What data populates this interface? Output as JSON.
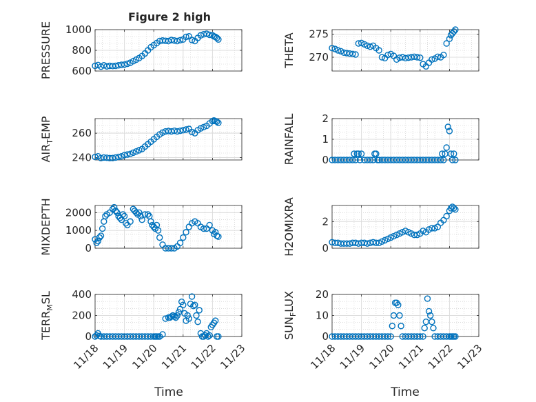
{
  "figure_title": "Figure 2 high",
  "xlabel": "Time",
  "xtick_labels": [
    "11/18",
    "11/19",
    "11/20",
    "11/21",
    "11/22",
    "11/23"
  ],
  "colors": {
    "marker": "#0072BD",
    "axis": "#262626",
    "grid": "#c8c8c8",
    "background": "#ffffff"
  },
  "chart_data": [
    {
      "type": "scatter",
      "ylabel": "PRESSURE",
      "xlim": [
        0,
        5
      ],
      "ylim": [
        600,
        1000
      ],
      "yticks": [
        600,
        800,
        1000
      ],
      "grid": true,
      "title": "Figure 2 high",
      "series": [
        {
          "x": [
            0.0,
            0.1,
            0.2,
            0.3,
            0.4,
            0.5,
            0.6,
            0.7,
            0.8,
            0.9,
            1.0,
            1.1,
            1.2,
            1.3,
            1.4,
            1.5,
            1.6,
            1.7,
            1.8,
            1.9,
            2.0,
            2.1,
            2.2,
            2.3,
            2.4,
            2.5,
            2.6,
            2.7,
            2.8,
            2.9,
            3.0,
            3.1,
            3.2,
            3.3,
            3.4,
            3.5,
            3.6,
            3.7,
            3.8,
            3.9,
            4.0,
            4.05,
            4.1,
            4.15,
            4.2
          ],
          "y": [
            650,
            658,
            642,
            655,
            645,
            650,
            648,
            650,
            655,
            660,
            662,
            670,
            680,
            695,
            710,
            725,
            745,
            770,
            800,
            830,
            850,
            870,
            890,
            895,
            892,
            890,
            900,
            895,
            890,
            898,
            905,
            930,
            935,
            900,
            890,
            920,
            945,
            955,
            960,
            950,
            945,
            935,
            930,
            920,
            905
          ]
        }
      ]
    },
    {
      "type": "scatter",
      "ylabel": "THETA",
      "xlim": [
        0,
        5
      ],
      "ylim": [
        267,
        276
      ],
      "yticks": [
        270,
        275
      ],
      "grid": true,
      "series": [
        {
          "x": [
            0.0,
            0.1,
            0.2,
            0.3,
            0.4,
            0.5,
            0.6,
            0.7,
            0.8,
            0.9,
            1.0,
            1.1,
            1.2,
            1.3,
            1.4,
            1.5,
            1.6,
            1.7,
            1.8,
            1.9,
            2.0,
            2.1,
            2.2,
            2.3,
            2.4,
            2.5,
            2.6,
            2.7,
            2.8,
            2.9,
            3.0,
            3.1,
            3.2,
            3.3,
            3.4,
            3.5,
            3.6,
            3.7,
            3.8,
            3.9,
            4.0,
            4.05,
            4.1,
            4.15,
            4.2
          ],
          "y": [
            272,
            271.8,
            271.5,
            271.3,
            271,
            270.9,
            270.8,
            270.7,
            270.6,
            273,
            273.1,
            272.8,
            272.5,
            272.3,
            272.5,
            272,
            271.5,
            270,
            269.8,
            270.5,
            270.7,
            270.3,
            269.5,
            269.9,
            270,
            269.8,
            269.9,
            270,
            270.1,
            270,
            269.9,
            268.5,
            268,
            268.8,
            269.5,
            269.7,
            270.1,
            270,
            270.5,
            273,
            274,
            274.8,
            275.2,
            275.6,
            276
          ]
        }
      ]
    },
    {
      "type": "scatter",
      "ylabel": "AIR_TEMP",
      "xlim": [
        0,
        5
      ],
      "ylim": [
        238,
        272
      ],
      "yticks": [
        240,
        260
      ],
      "grid": true,
      "series": [
        {
          "x": [
            0.0,
            0.1,
            0.2,
            0.3,
            0.4,
            0.5,
            0.6,
            0.7,
            0.8,
            0.9,
            1.0,
            1.1,
            1.2,
            1.3,
            1.4,
            1.5,
            1.6,
            1.7,
            1.8,
            1.9,
            2.0,
            2.1,
            2.2,
            2.3,
            2.4,
            2.5,
            2.6,
            2.7,
            2.8,
            2.9,
            3.0,
            3.1,
            3.2,
            3.3,
            3.4,
            3.5,
            3.6,
            3.7,
            3.8,
            3.9,
            4.0,
            4.05,
            4.1,
            4.15,
            4.2
          ],
          "y": [
            240.5,
            241,
            239.5,
            240,
            239.8,
            239.5,
            239.6,
            240,
            240.5,
            241,
            242,
            242.5,
            243,
            244,
            245,
            246,
            247,
            249,
            251,
            253,
            255,
            257,
            259,
            260.5,
            261.5,
            261.8,
            261.5,
            262,
            261.5,
            262,
            262.5,
            263,
            263.5,
            261,
            260,
            262.5,
            264,
            265,
            266,
            268,
            270,
            270.5,
            270,
            269.5,
            268.5
          ]
        }
      ]
    },
    {
      "type": "scatter",
      "ylabel": "RAINFALL",
      "xlim": [
        0,
        5
      ],
      "ylim": [
        0,
        2
      ],
      "yticks": [
        0,
        1,
        2
      ],
      "grid": true,
      "series": [
        {
          "x": [
            0.0,
            0.1,
            0.2,
            0.3,
            0.4,
            0.5,
            0.6,
            0.7,
            0.75,
            0.8,
            0.85,
            0.9,
            0.95,
            1.0,
            1.1,
            1.2,
            1.3,
            1.4,
            1.45,
            1.5,
            1.55,
            1.6,
            1.7,
            1.8,
            1.9,
            2.0,
            2.1,
            2.2,
            2.3,
            2.4,
            2.5,
            2.6,
            2.7,
            2.8,
            2.9,
            3.0,
            3.1,
            3.2,
            3.3,
            3.4,
            3.5,
            3.6,
            3.7,
            3.75,
            3.8,
            3.85,
            3.9,
            3.95,
            4.0,
            4.05,
            4.1,
            4.15,
            4.2
          ],
          "y": [
            0,
            0,
            0,
            0,
            0,
            0,
            0,
            0,
            0.3,
            0,
            0.3,
            0.3,
            0,
            0.3,
            0,
            0,
            0,
            0,
            0.3,
            0.3,
            0,
            0,
            0,
            0,
            0,
            0,
            0,
            0,
            0,
            0,
            0,
            0,
            0,
            0,
            0,
            0,
            0,
            0,
            0,
            0,
            0,
            0,
            0,
            0.3,
            0,
            0.3,
            0.6,
            1.6,
            1.4,
            0.3,
            0,
            0.3,
            0
          ]
        }
      ]
    },
    {
      "type": "scatter",
      "ylabel": "MIXDEPTH",
      "xlim": [
        0,
        5
      ],
      "ylim": [
        0,
        2400
      ],
      "yticks": [
        0,
        1000,
        2000
      ],
      "grid": true,
      "series": [
        {
          "x": [
            0.0,
            0.05,
            0.1,
            0.15,
            0.2,
            0.25,
            0.3,
            0.35,
            0.4,
            0.5,
            0.6,
            0.65,
            0.7,
            0.75,
            0.8,
            0.85,
            0.9,
            0.95,
            1.0,
            1.05,
            1.1,
            1.2,
            1.3,
            1.35,
            1.4,
            1.45,
            1.5,
            1.55,
            1.6,
            1.7,
            1.8,
            1.85,
            1.9,
            1.95,
            2.0,
            2.05,
            2.1,
            2.15,
            2.2,
            2.3,
            2.4,
            2.5,
            2.6,
            2.7,
            2.8,
            2.9,
            3.0,
            3.1,
            3.2,
            3.3,
            3.4,
            3.5,
            3.6,
            3.7,
            3.8,
            3.9,
            4.0,
            4.05,
            4.1,
            4.15,
            4.2
          ],
          "y": [
            500,
            300,
            400,
            600,
            700,
            1100,
            1500,
            1800,
            1900,
            2000,
            2200,
            2300,
            2100,
            2000,
            1800,
            1700,
            1600,
            1900,
            1800,
            1400,
            1300,
            1500,
            2200,
            2100,
            2000,
            1900,
            2000,
            1800,
            1600,
            1900,
            1900,
            1800,
            1500,
            1300,
            1200,
            1100,
            1300,
            1000,
            600,
            200,
            0,
            0,
            0,
            0,
            100,
            300,
            600,
            900,
            1200,
            1400,
            1500,
            1400,
            1200,
            1100,
            1100,
            1300,
            1000,
            800,
            900,
            700,
            650
          ]
        }
      ]
    },
    {
      "type": "scatter",
      "ylabel": "H2OMIXRA",
      "xlim": [
        0,
        5
      ],
      "ylim": [
        0,
        3.2
      ],
      "yticks": [
        0,
        2
      ],
      "grid": true,
      "series": [
        {
          "x": [
            0.0,
            0.1,
            0.2,
            0.3,
            0.4,
            0.5,
            0.6,
            0.7,
            0.8,
            0.9,
            1.0,
            1.1,
            1.2,
            1.3,
            1.4,
            1.5,
            1.6,
            1.7,
            1.8,
            1.9,
            2.0,
            2.1,
            2.2,
            2.3,
            2.4,
            2.5,
            2.6,
            2.7,
            2.8,
            2.9,
            3.0,
            3.1,
            3.2,
            3.3,
            3.4,
            3.5,
            3.6,
            3.7,
            3.8,
            3.9,
            4.0,
            4.05,
            4.1,
            4.15,
            4.2
          ],
          "y": [
            0.45,
            0.4,
            0.4,
            0.35,
            0.35,
            0.35,
            0.35,
            0.4,
            0.4,
            0.35,
            0.4,
            0.4,
            0.35,
            0.4,
            0.45,
            0.4,
            0.4,
            0.5,
            0.6,
            0.7,
            0.8,
            0.9,
            1.0,
            1.1,
            1.2,
            1.3,
            1.2,
            1.1,
            1.0,
            1.0,
            1.1,
            1.3,
            1.2,
            1.4,
            1.5,
            1.5,
            1.6,
            1.9,
            2.1,
            2.4,
            2.8,
            3.0,
            3.1,
            3.0,
            2.9
          ]
        }
      ]
    },
    {
      "type": "scatter",
      "ylabel": "TERR_MSL",
      "xlim": [
        0,
        5
      ],
      "ylim": [
        0,
        400
      ],
      "yticks": [
        0,
        200,
        400
      ],
      "grid": true,
      "series": [
        {
          "x": [
            0.0,
            0.05,
            0.1,
            0.15,
            0.2,
            0.3,
            0.4,
            0.5,
            0.6,
            0.7,
            0.8,
            0.9,
            1.0,
            1.1,
            1.2,
            1.3,
            1.4,
            1.5,
            1.6,
            1.7,
            1.8,
            1.9,
            2.0,
            2.05,
            2.1,
            2.15,
            2.2,
            2.3,
            2.4,
            2.5,
            2.55,
            2.6,
            2.65,
            2.7,
            2.75,
            2.8,
            2.85,
            2.9,
            2.95,
            3.0,
            3.05,
            3.1,
            3.15,
            3.2,
            3.25,
            3.3,
            3.35,
            3.4,
            3.45,
            3.5,
            3.55,
            3.6,
            3.65,
            3.7,
            3.75,
            3.8,
            3.85,
            3.9,
            3.95,
            4.0,
            4.05,
            4.1,
            4.15,
            4.2
          ],
          "y": [
            0,
            10,
            30,
            5,
            0,
            0,
            0,
            0,
            0,
            0,
            0,
            0,
            0,
            0,
            0,
            0,
            0,
            0,
            0,
            0,
            0,
            0,
            0,
            0,
            0,
            0,
            0,
            20,
            170,
            180,
            180,
            190,
            200,
            190,
            180,
            200,
            230,
            260,
            330,
            300,
            220,
            150,
            200,
            170,
            310,
            380,
            290,
            300,
            200,
            140,
            250,
            30,
            0,
            0,
            10,
            30,
            0,
            10,
            90,
            110,
            130,
            150,
            0,
            0
          ]
        }
      ]
    },
    {
      "type": "scatter",
      "ylabel": "SUN_FLUX",
      "xlim": [
        0,
        5
      ],
      "ylim": [
        0,
        20
      ],
      "yticks": [
        0,
        10,
        20
      ],
      "grid": true,
      "series": [
        {
          "x": [
            0.0,
            0.1,
            0.2,
            0.3,
            0.4,
            0.5,
            0.6,
            0.7,
            0.8,
            0.9,
            1.0,
            1.1,
            1.2,
            1.3,
            1.4,
            1.5,
            1.6,
            1.7,
            1.8,
            1.9,
            2.0,
            2.05,
            2.1,
            2.15,
            2.2,
            2.25,
            2.3,
            2.35,
            2.4,
            2.5,
            2.6,
            2.7,
            2.8,
            2.9,
            3.0,
            3.1,
            3.15,
            3.2,
            3.25,
            3.3,
            3.35,
            3.4,
            3.45,
            3.5,
            3.6,
            3.7,
            3.8,
            3.9,
            4.0,
            4.05,
            4.1,
            4.15,
            4.2
          ],
          "y": [
            0,
            0,
            0,
            0,
            0,
            0,
            0,
            0,
            0,
            0,
            0,
            0,
            0,
            0,
            0,
            0,
            0,
            0,
            0,
            0,
            0,
            5,
            10,
            16,
            16,
            15,
            10,
            5,
            0,
            0,
            0,
            0,
            0,
            0,
            0,
            0,
            4,
            7,
            18,
            12,
            10,
            7,
            4,
            0,
            0,
            0,
            0,
            0,
            0,
            0,
            0,
            0,
            0
          ]
        }
      ]
    }
  ]
}
